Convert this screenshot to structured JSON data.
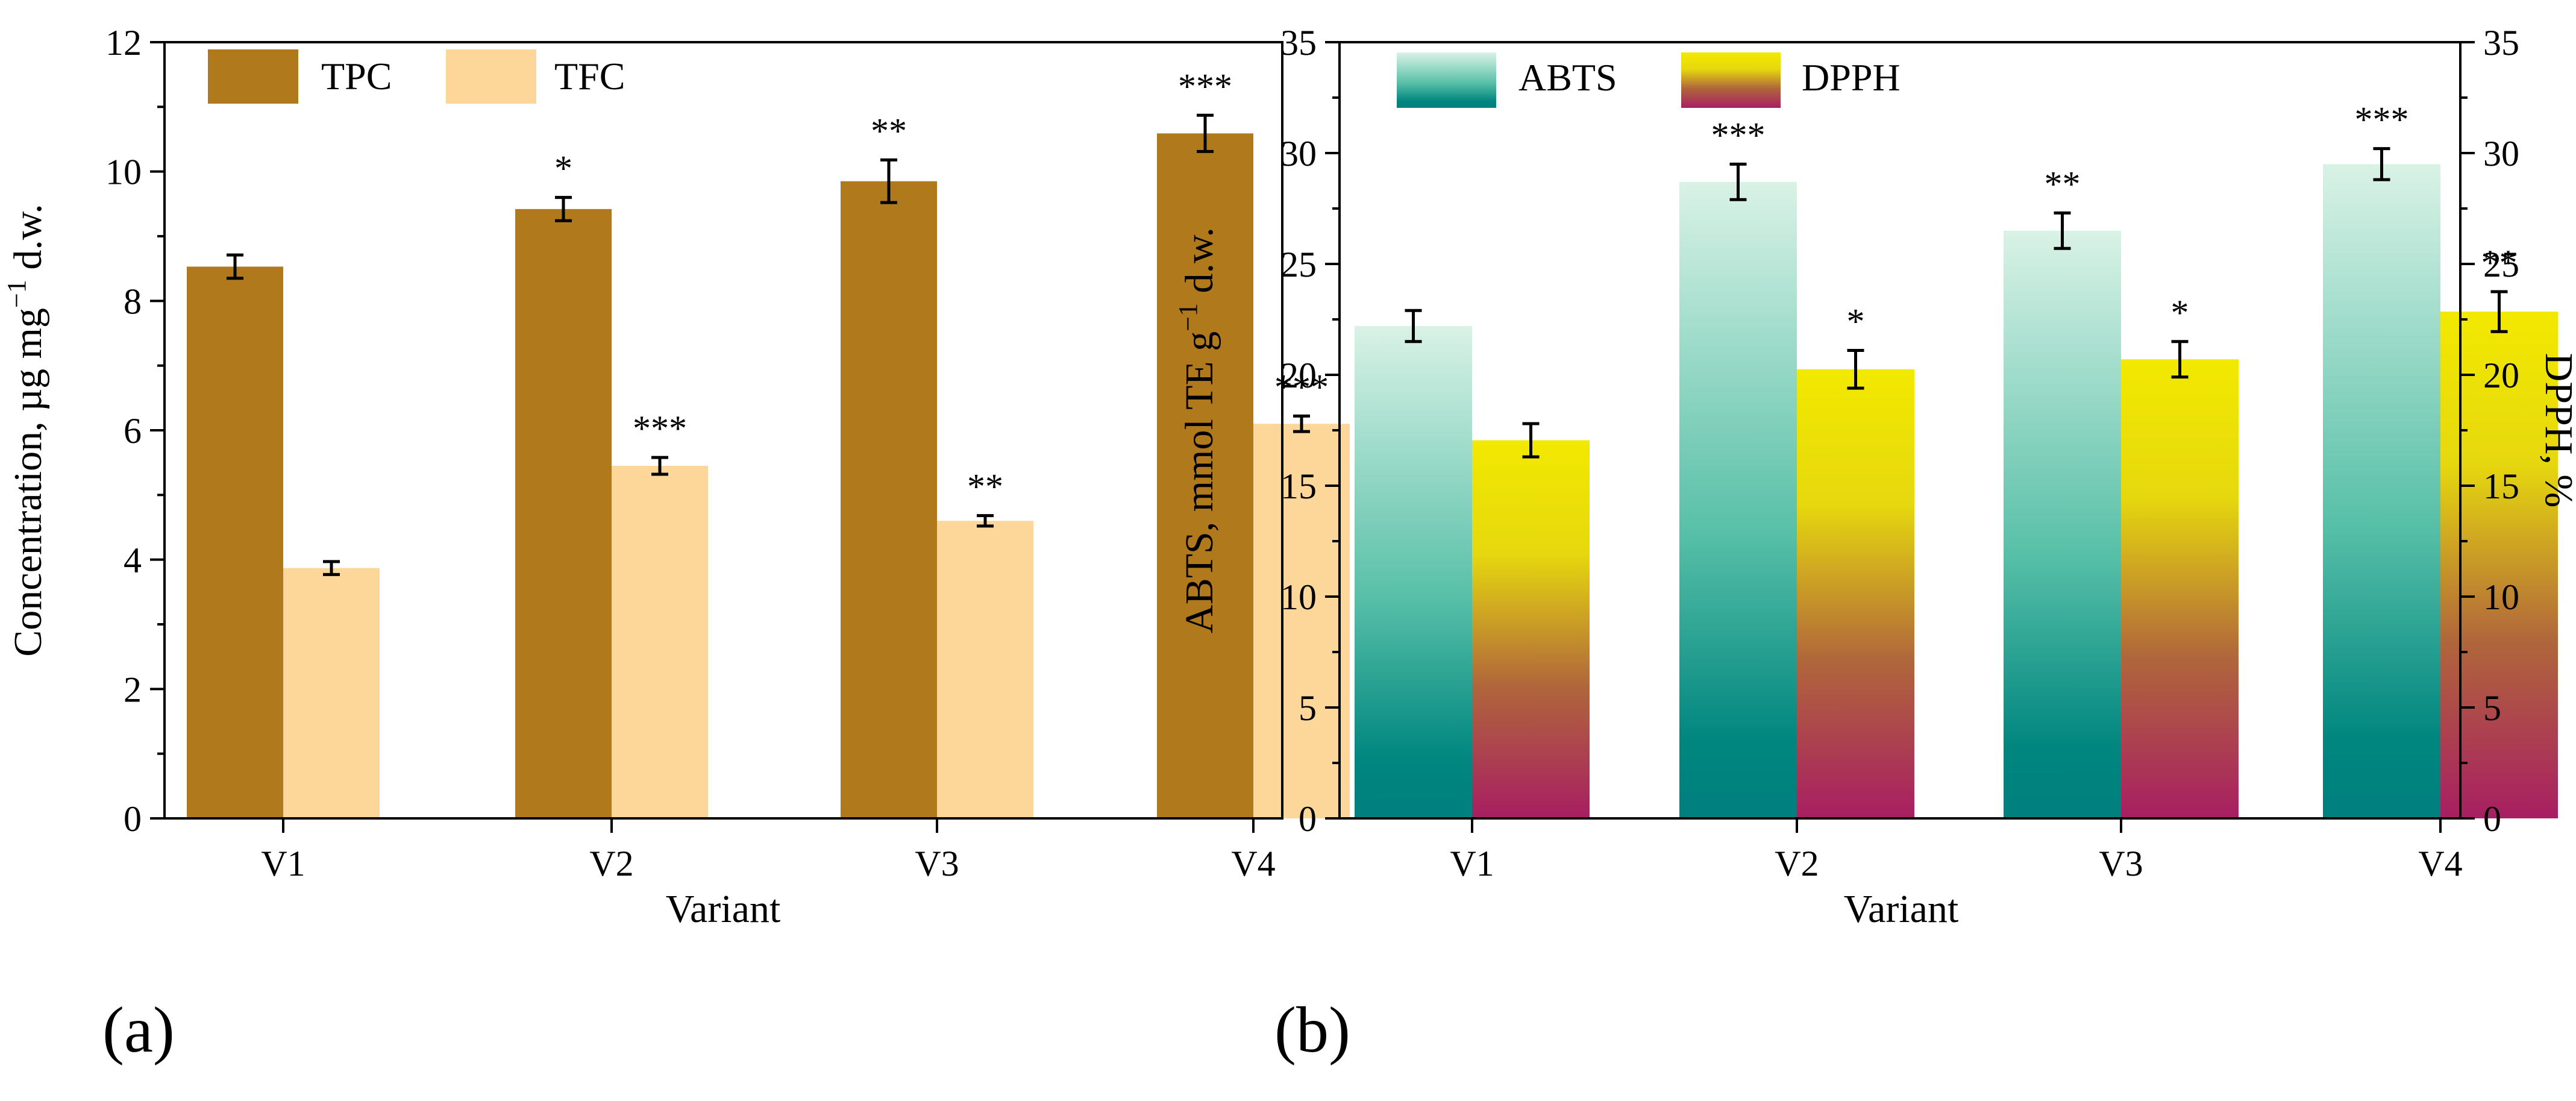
{
  "chart_data": [
    {
      "type": "bar",
      "panel_label": "(a)",
      "categories": [
        "V1",
        "V2",
        "V3",
        "V4"
      ],
      "xlabel": "Variant",
      "ylabel": "Concentration, µg mg",
      "ylabel_sup": "−1",
      "ylabel_suffix": " d.w.",
      "ylim": [
        0,
        12
      ],
      "yticks": [
        0,
        2,
        4,
        6,
        8,
        10,
        12
      ],
      "legend_position": "top-left",
      "series": [
        {
          "name": "TPC",
          "color": "#b07a1c",
          "values": [
            8.53,
            9.42,
            9.85,
            10.59
          ],
          "errors": [
            0.18,
            0.18,
            0.33,
            0.28
          ],
          "significance": [
            "",
            "*",
            "**",
            "***"
          ]
        },
        {
          "name": "TFC",
          "color": "#fdd699",
          "values": [
            3.87,
            5.45,
            4.6,
            6.1
          ],
          "errors": [
            0.1,
            0.13,
            0.08,
            0.12
          ],
          "significance": [
            "",
            "***",
            "**",
            "***"
          ]
        }
      ]
    },
    {
      "type": "bar",
      "panel_label": "(b)",
      "categories": [
        "V1",
        "V2",
        "V3",
        "V4"
      ],
      "xlabel": "Variant",
      "ylabel": "ABTS, mmol TE g",
      "ylabel_sup": "−1",
      "ylabel_suffix": " d.w.",
      "ylabel_right": "DPPH, %",
      "ylim": [
        0,
        35
      ],
      "ylim_right": [
        0,
        35
      ],
      "yticks": [
        0,
        5,
        10,
        15,
        20,
        25,
        30,
        35
      ],
      "legend_position": "top-left",
      "series": [
        {
          "name": "ABTS",
          "axis": "left",
          "gradient": [
            "#007f7f",
            "#d9f2e6"
          ],
          "values": [
            22.2,
            28.7,
            26.5,
            29.5
          ],
          "errors": [
            0.7,
            0.8,
            0.8,
            0.7
          ],
          "significance": [
            "",
            "***",
            "**",
            "***"
          ]
        },
        {
          "name": "DPPH",
          "axis": "right",
          "gradient": [
            "#a81e62",
            "#f2e900"
          ],
          "values": [
            17.05,
            20.25,
            20.7,
            22.85
          ],
          "errors": [
            0.75,
            0.85,
            0.8,
            0.9
          ],
          "significance": [
            "",
            "*",
            "*",
            "**"
          ]
        }
      ]
    }
  ]
}
